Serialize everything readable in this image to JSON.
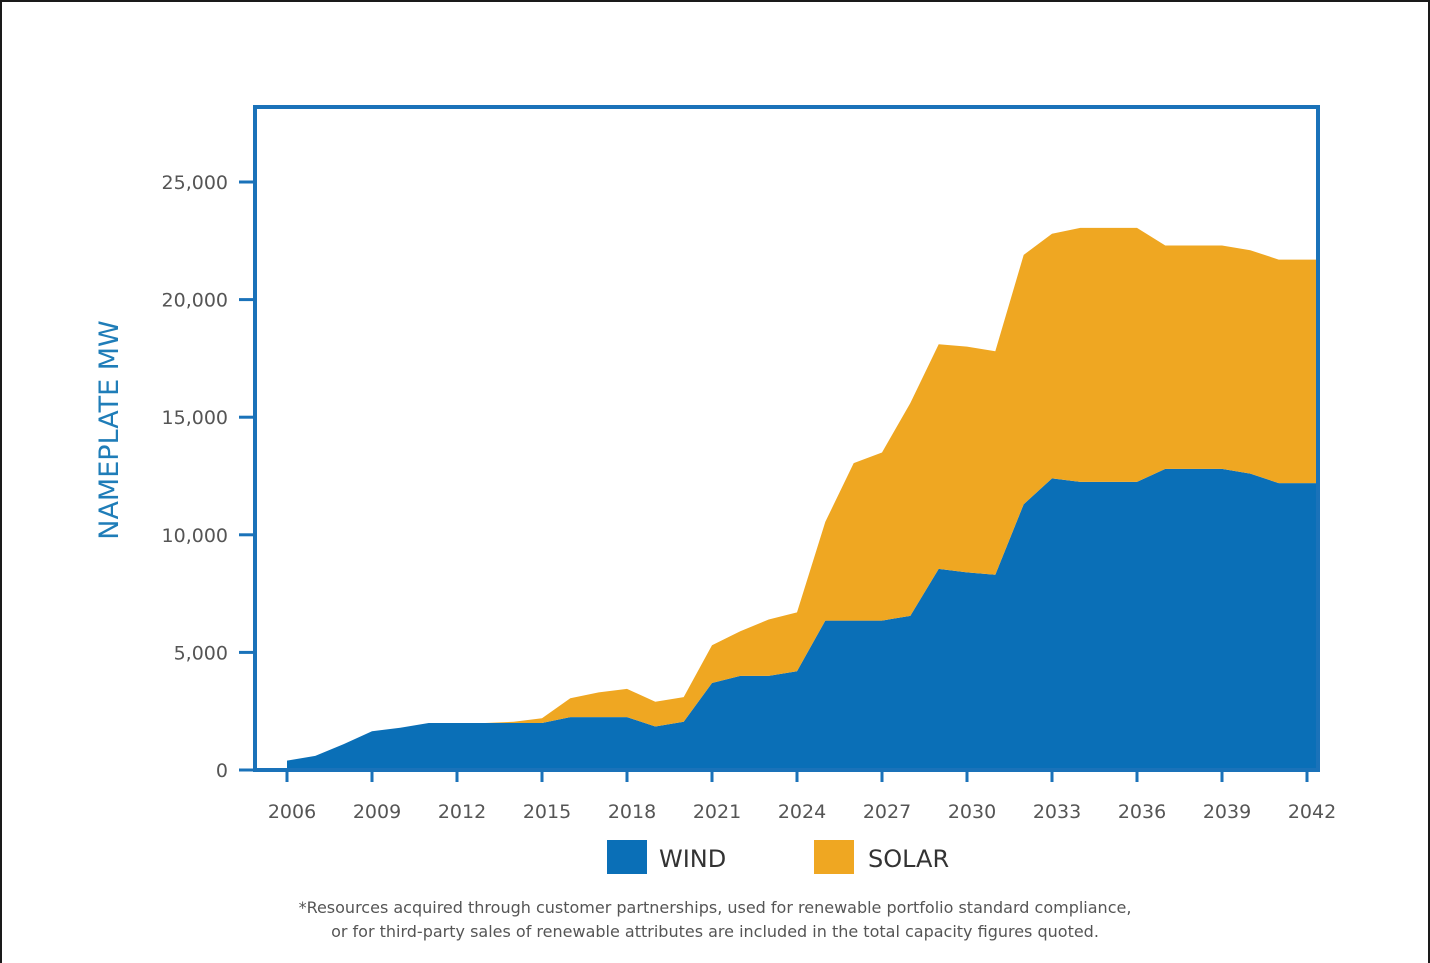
{
  "colors": {
    "wind": "#0a6fb7",
    "solar": "#efa722",
    "frame": "#1a72b9",
    "ylabel": "#1f7db8"
  },
  "chart_data": {
    "type": "area",
    "stacked": true,
    "title": "",
    "xlabel": "",
    "ylabel": "NAMEPLATE MW",
    "xlim": [
      2006,
      2042
    ],
    "ylim": [
      0,
      28000
    ],
    "x_ticks": [
      "2006",
      "2009",
      "2012",
      "2015",
      "2018",
      "2021",
      "2024",
      "2027",
      "2030",
      "2033",
      "2036",
      "2039",
      "2042"
    ],
    "y_ticks": [
      "0",
      "5,000",
      "10,000",
      "15,000",
      "20,000",
      "25,000"
    ],
    "legend_position": "bottom",
    "x": [
      2006,
      2007,
      2008,
      2009,
      2010,
      2011,
      2012,
      2013,
      2014,
      2015,
      2016,
      2017,
      2018,
      2019,
      2020,
      2021,
      2022,
      2023,
      2024,
      2025,
      2026,
      2027,
      2028,
      2029,
      2030,
      2031,
      2032,
      2033,
      2034,
      2035,
      2036,
      2037,
      2038,
      2039,
      2040,
      2041,
      2042
    ],
    "series": [
      {
        "name": "WIND",
        "values": [
          400,
          600,
          1100,
          1650,
          1800,
          2000,
          2000,
          2000,
          2000,
          2000,
          2250,
          2250,
          2250,
          1850,
          2050,
          3700,
          4000,
          4000,
          4200,
          6350,
          6350,
          6350,
          6550,
          8550,
          8400,
          8300,
          11300,
          12400,
          12250,
          12250,
          12250,
          12800,
          12800,
          12800,
          12600,
          12200,
          12200
        ]
      },
      {
        "name": "SOLAR",
        "values": [
          0,
          0,
          0,
          0,
          0,
          0,
          0,
          0,
          50,
          200,
          800,
          1050,
          1200,
          1050,
          1050,
          1600,
          1900,
          2400,
          2500,
          4200,
          6700,
          7150,
          9050,
          9550,
          9600,
          9500,
          10600,
          10400,
          10800,
          10800,
          10800,
          9500,
          9500,
          9500,
          9500,
          9500,
          9500
        ]
      }
    ]
  },
  "legend": {
    "wind_label": "WIND",
    "solar_label": "SOLAR"
  },
  "footnote": {
    "line1": "*Resources acquired through customer partnerships, used for renewable portfolio standard compliance,",
    "line2": "or for third-party sales of renewable attributes are included in the total capacity figures quoted."
  }
}
